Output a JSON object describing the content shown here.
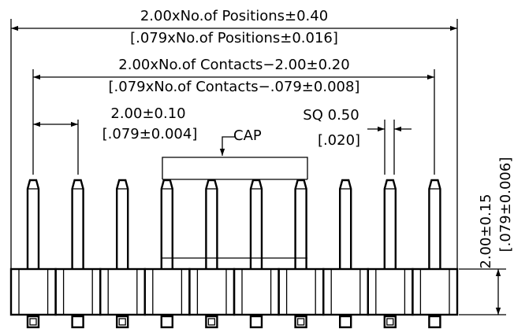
{
  "overall_length": {
    "metric": "2.00xNo.of Positions±0.40",
    "inch": "[.079xNo.of Positions±0.016]"
  },
  "contact_span": {
    "metric": "2.00xNo.of Contacts−2.00±0.20",
    "inch": "[.079xNo.of Contacts−.079±0.008]"
  },
  "pitch": {
    "metric": "2.00±0.10",
    "inch": "[.079±0.004]"
  },
  "cap": {
    "label": "CAP"
  },
  "pin_size": {
    "metric": "SQ 0.50",
    "inch": "[.020]"
  },
  "height": {
    "metric": "2.00±0.15",
    "inch": "[.079±0.006]"
  },
  "pin_count": 10
}
